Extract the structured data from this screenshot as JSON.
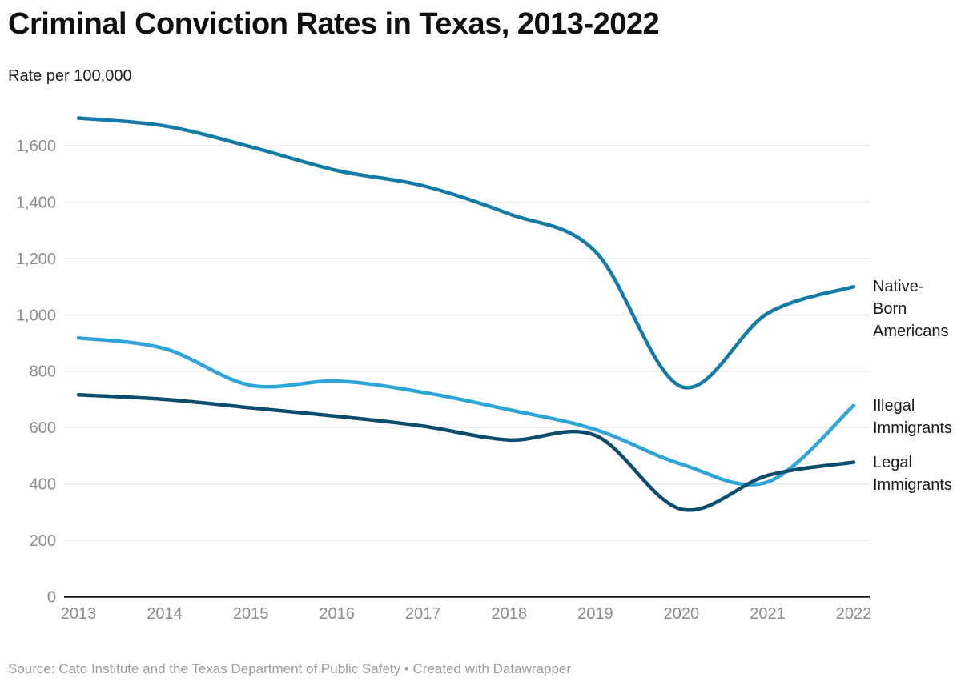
{
  "header": {
    "title": "Criminal Conviction Rates in Texas, 2013-2022",
    "subtitle": "Rate per 100,000"
  },
  "footer": {
    "text": "Source: Cato Institute and the Texas Department of Public Safety • Created with Datawrapper"
  },
  "colors": {
    "native_born": "#147aa6",
    "illegal_immigrants": "#2ea5d8",
    "legal_immigrants": "#0c4d6e",
    "gridline": "#e9e9e9",
    "baseline": "#151515",
    "axis_label": "#8c8c8c",
    "title_text": "#0f0f0f",
    "legend_text": "#1a1a1a",
    "footer_text": "#9b9b9b"
  },
  "chart_data": {
    "type": "line",
    "title": "Criminal Conviction Rates in Texas, 2013-2022",
    "ylabel": "Rate per 100,000",
    "xlabel": "",
    "x": [
      2013,
      2014,
      2015,
      2016,
      2017,
      2018,
      2019,
      2020,
      2021,
      2022
    ],
    "series": [
      {
        "name": "Native-Born Americans",
        "label_text": "Native-\nBorn\nAmericans",
        "color": "#147aa6",
        "values": [
          1698,
          1670,
          1596,
          1512,
          1458,
          1358,
          1225,
          745,
          1005,
          1100
        ]
      },
      {
        "name": "Illegal Immigrants",
        "label_text": "Illegal\nImmigrants",
        "color": "#2ea5d8",
        "values": [
          918,
          880,
          750,
          765,
          725,
          663,
          593,
          470,
          407,
          678
        ]
      },
      {
        "name": "Legal Immigrants",
        "label_text": "Legal\nImmigrants",
        "color": "#0c4d6e",
        "values": [
          716,
          700,
          670,
          640,
          605,
          556,
          572,
          310,
          430,
          477
        ]
      }
    ],
    "ylim": [
      0,
      1750
    ],
    "ytick_values": [
      0,
      200,
      400,
      600,
      800,
      1000,
      1200,
      1400,
      1600
    ],
    "ytick_labels": [
      "0",
      "200",
      "400",
      "600",
      "800",
      "1,000",
      "1,200",
      "1,400",
      "1,600"
    ],
    "grid": "horizontal",
    "legend_position": "right-end-of-line",
    "line_smoothing": "curved"
  }
}
